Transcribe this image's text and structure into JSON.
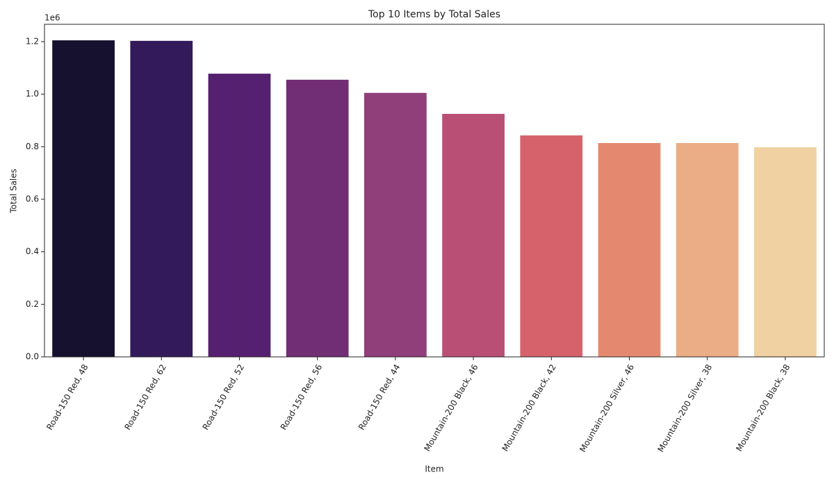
{
  "chart_data": {
    "type": "bar",
    "title": "Top 10 Items by Total Sales",
    "x_label": "Item",
    "y_label": "Total Sales",
    "y_offset_label": "1e6",
    "categories": [
      "Road-150 Red, 48",
      "Road-150 Red, 62",
      "Road-150 Red, 52",
      "Road-150 Red, 56",
      "Road-150 Red, 44",
      "Mountain-200 Black, 46",
      "Mountain-200 Black, 42",
      "Mountain-200 Silver, 46",
      "Mountain-200 Silver, 38",
      "Mountain-200 Black, 38"
    ],
    "values": [
      1205000,
      1203000,
      1078000,
      1055000,
      1005000,
      925000,
      843000,
      814000,
      814000,
      798000
    ],
    "colors": [
      "#15112f",
      "#321a5b",
      "#55206f",
      "#712e75",
      "#913f7b",
      "#ba4f76",
      "#d6636c",
      "#e48970",
      "#ebad86",
      "#f0d1a2"
    ],
    "ylim": [
      0,
      1266000
    ],
    "yticks": [
      {
        "value": 0,
        "label": "0.0"
      },
      {
        "value": 200000,
        "label": "0.2"
      },
      {
        "value": 400000,
        "label": "0.4"
      },
      {
        "value": 600000,
        "label": "0.6"
      },
      {
        "value": 800000,
        "label": "0.8"
      },
      {
        "value": 1000000,
        "label": "1.0"
      },
      {
        "value": 1200000,
        "label": "1.2"
      }
    ],
    "grid": false
  }
}
